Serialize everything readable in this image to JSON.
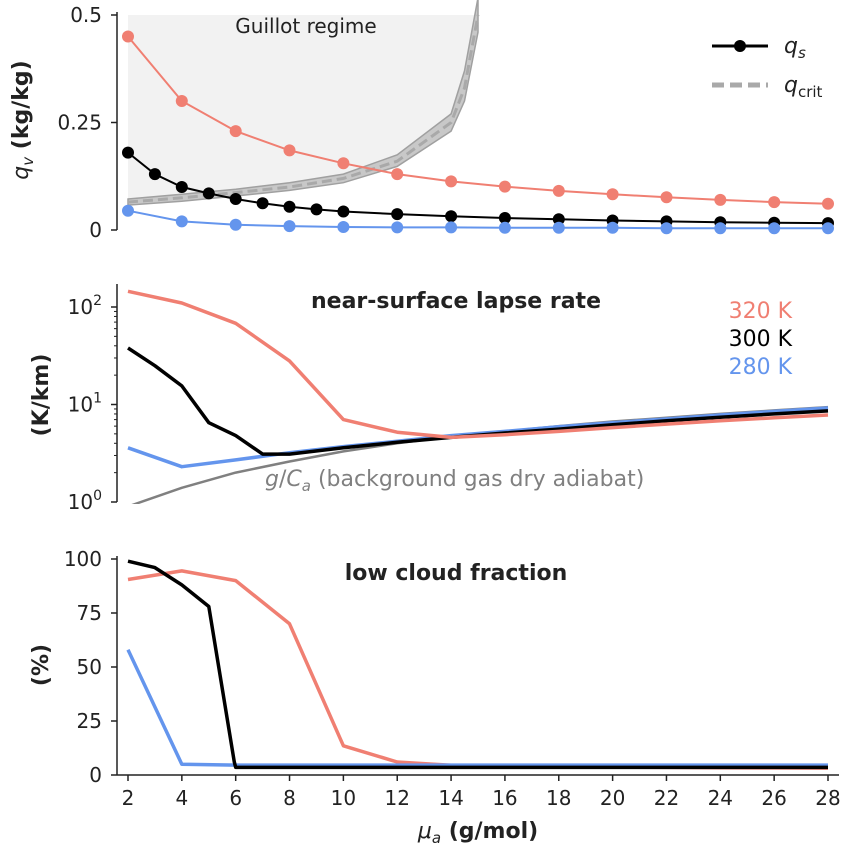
{
  "chart_data": [
    {
      "type": "line",
      "title": "",
      "ylabel": "q_v (kg/kg)",
      "ylabel_main": "q",
      "ylabel_sub": "v",
      "ylabel_unit": "(kg/kg)",
      "ylim": [
        0,
        0.5
      ],
      "yticks": [
        0,
        0.25,
        0.5
      ],
      "ytick_labels": [
        "0",
        "0.25",
        "0.5"
      ],
      "region_label": "Guillot regime",
      "legend": [
        {
          "key": "qs",
          "main": "q",
          "sub": "s",
          "style": "black line with circle marker"
        },
        {
          "key": "qcrit",
          "main": "q",
          "sub": "crit",
          "style": "gray dashed band"
        }
      ],
      "colors": {
        "320K": "#f07f72",
        "300K": "#000000",
        "280K": "#6495ed",
        "qcrit": "#a9a9a9",
        "region": "#f2f2f2"
      },
      "series": [
        {
          "temp": "320 K",
          "color": "#f07f72",
          "x": [
            2,
            4,
            6,
            8,
            10,
            12,
            14,
            16,
            18,
            20,
            22,
            24,
            26,
            28
          ],
          "values": [
            0.45,
            0.3,
            0.23,
            0.185,
            0.155,
            0.13,
            0.113,
            0.101,
            0.091,
            0.083,
            0.076,
            0.07,
            0.065,
            0.061
          ]
        },
        {
          "temp": "300 K",
          "color": "#000000",
          "x": [
            2,
            3,
            4,
            5,
            6,
            7,
            8,
            9,
            10,
            12,
            14,
            16,
            18,
            20,
            22,
            24,
            26,
            28
          ],
          "values": [
            0.18,
            0.13,
            0.1,
            0.085,
            0.072,
            0.062,
            0.054,
            0.048,
            0.043,
            0.037,
            0.032,
            0.028,
            0.025,
            0.022,
            0.02,
            0.018,
            0.017,
            0.016
          ]
        },
        {
          "temp": "280 K",
          "color": "#6495ed",
          "x": [
            2,
            4,
            6,
            8,
            10,
            12,
            14,
            16,
            18,
            20,
            22,
            24,
            26,
            28
          ],
          "values": [
            0.045,
            0.02,
            0.012,
            0.009,
            0.007,
            0.006,
            0.006,
            0.005,
            0.005,
            0.005,
            0.004,
            0.004,
            0.004,
            0.004
          ]
        }
      ],
      "qcrit": {
        "x": [
          2,
          4,
          6,
          8,
          10,
          12,
          14,
          14.5,
          15
        ],
        "values": [
          0.065,
          0.075,
          0.087,
          0.1,
          0.12,
          0.16,
          0.25,
          0.33,
          0.5
        ],
        "band_lower": [
          0.058,
          0.067,
          0.079,
          0.092,
          0.11,
          0.148,
          0.23,
          0.3,
          0.46
        ],
        "band_upper": [
          0.072,
          0.083,
          0.095,
          0.11,
          0.13,
          0.175,
          0.27,
          0.37,
          0.54
        ]
      }
    },
    {
      "type": "line",
      "title": "near-surface lapse rate",
      "ylabel": "(K/km)",
      "yscale": "log",
      "ylim": [
        1,
        180
      ],
      "yticks": [
        1,
        10,
        100
      ],
      "ytick_labels": [
        {
          "base": "10",
          "exp": "0"
        },
        {
          "base": "10",
          "exp": "1"
        },
        {
          "base": "10",
          "exp": "2"
        }
      ],
      "legend": [
        {
          "label": "320 K",
          "color": "#f07f72"
        },
        {
          "label": "300 K",
          "color": "#000000"
        },
        {
          "label": "280 K",
          "color": "#6495ed"
        }
      ],
      "annotation": {
        "g": "g",
        "slash": "/",
        "C": "C",
        "sub": "a",
        "rest": " (background gas dry adiabat)",
        "color": "#808080"
      },
      "series": [
        {
          "temp": "320 K",
          "color": "#f07f72",
          "x": [
            2,
            4,
            6,
            8,
            10,
            12,
            14,
            16,
            18,
            20,
            22,
            24,
            26,
            28
          ],
          "values": [
            145,
            110,
            68,
            28,
            7,
            5.2,
            4.6,
            4.9,
            5.3,
            5.8,
            6.3,
            6.8,
            7.3,
            7.8
          ]
        },
        {
          "temp": "300 K",
          "color": "#000000",
          "x": [
            2,
            3,
            4,
            5,
            6,
            7,
            8,
            10,
            12,
            14,
            16,
            18,
            20,
            22,
            24,
            26,
            28
          ],
          "values": [
            38,
            25,
            15.5,
            6.5,
            4.8,
            3.1,
            3.1,
            3.6,
            4.1,
            4.6,
            5.1,
            5.6,
            6.2,
            6.8,
            7.4,
            8,
            8.6
          ]
        },
        {
          "temp": "280 K",
          "color": "#6495ed",
          "x": [
            2,
            4,
            6,
            8,
            10,
            12,
            14,
            16,
            18,
            20,
            22,
            24,
            26,
            28
          ],
          "values": [
            3.6,
            2.3,
            2.7,
            3.2,
            3.7,
            4.2,
            4.8,
            5.3,
            5.9,
            6.5,
            7.1,
            7.8,
            8.5,
            9.2
          ]
        },
        {
          "temp": "g/Ca",
          "color": "#808080",
          "x": [
            2,
            4,
            6,
            8,
            10,
            12,
            14,
            16,
            18,
            20,
            22,
            24,
            26,
            28
          ],
          "values": [
            0.9,
            1.4,
            2.0,
            2.6,
            3.3,
            4.0,
            4.7,
            5.3,
            6.0,
            6.7,
            7.3,
            8.0,
            8.7,
            9.4
          ]
        }
      ]
    },
    {
      "type": "line",
      "title": "low cloud fraction",
      "ylabel": "(%)",
      "xlabel_main": "μ",
      "xlabel_sub": "a",
      "xlabel_unit": "(g/mol)",
      "ylim": [
        0,
        100
      ],
      "yticks": [
        0,
        25,
        50,
        75,
        100
      ],
      "xlim": [
        2,
        28
      ],
      "xticks": [
        2,
        4,
        6,
        8,
        10,
        12,
        14,
        16,
        18,
        20,
        22,
        24,
        26,
        28
      ],
      "series": [
        {
          "temp": "320 K",
          "color": "#f07f72",
          "x": [
            2,
            4,
            6,
            8,
            10,
            12,
            14,
            16,
            18,
            20,
            22,
            24,
            26,
            28
          ],
          "values": [
            90.5,
            94.5,
            90,
            70,
            13.5,
            6,
            4.5,
            4,
            3.8,
            3.6,
            3.5,
            3.4,
            3.3,
            3.2
          ]
        },
        {
          "temp": "300 K",
          "color": "#000000",
          "x": [
            2,
            3,
            4,
            5,
            5.95,
            6,
            8,
            10,
            12,
            14,
            16,
            18,
            20,
            22,
            24,
            26,
            28
          ],
          "values": [
            99,
            96,
            88,
            78,
            6,
            3.5,
            3.5,
            3.5,
            3.5,
            3.5,
            3.5,
            3.5,
            3.5,
            3.5,
            3.5,
            3.5,
            3.5
          ]
        },
        {
          "temp": "280 K",
          "color": "#6495ed",
          "x": [
            2,
            4,
            6,
            8,
            10,
            12,
            14,
            16,
            18,
            20,
            22,
            24,
            26,
            28
          ],
          "values": [
            58,
            5,
            4.6,
            4.6,
            4.6,
            4.6,
            4.6,
            4.6,
            4.6,
            4.6,
            4.6,
            4.6,
            4.6,
            4.6
          ]
        }
      ]
    }
  ]
}
